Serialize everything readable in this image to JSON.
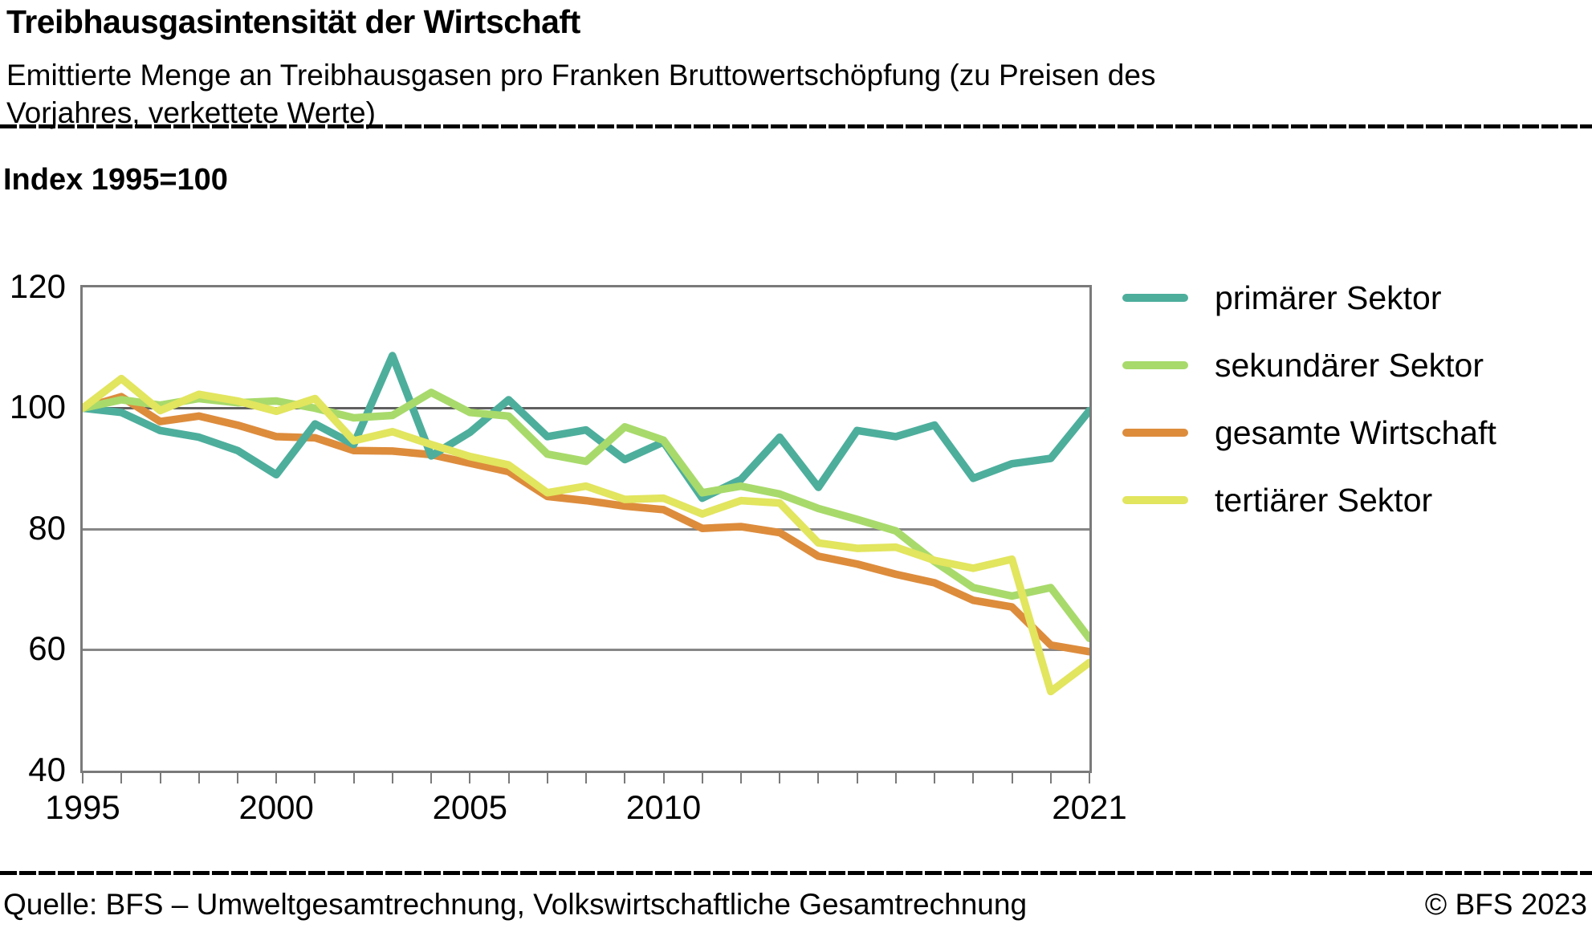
{
  "header": {
    "title": "Treibhausgasintensität der Wirtschaft",
    "subtitle_lines": [
      "Emittierte Menge an Treibhausgasen pro Franken Bruttowertschöpfung (zu Preisen des",
      "Vorjahres, verkettete Werte)"
    ]
  },
  "axis_note": "Index 1995=100",
  "chart_data": {
    "type": "line",
    "title": "Treibhausgasintensität der Wirtschaft",
    "index_note": "Index 1995=100",
    "x": [
      1995,
      1996,
      1997,
      1998,
      1999,
      2000,
      2001,
      2002,
      2003,
      2004,
      2005,
      2006,
      2007,
      2008,
      2009,
      2010,
      2011,
      2012,
      2013,
      2014,
      2015,
      2016,
      2017,
      2018,
      2019,
      2020,
      2021
    ],
    "x_ticklabel_years": [
      1995,
      2000,
      2005,
      2010,
      2021
    ],
    "x_ticklabels": [
      "1995",
      "2000",
      "2005",
      "2010",
      "2021"
    ],
    "ylim": [
      40,
      120
    ],
    "yticks": [
      40,
      60,
      80,
      100,
      120
    ],
    "grid": "horizontal",
    "legend_position": "right",
    "series": [
      {
        "name": "primärer Sektor",
        "color": "#4DAE9C",
        "values": [
          100,
          99.3,
          96.3,
          95.2,
          93.0,
          89.0,
          97.4,
          94.0,
          108.7,
          92.1,
          96.0,
          101.4,
          95.3,
          96.4,
          91.5,
          94.4,
          85.1,
          88.2,
          95.2,
          86.9,
          96.3,
          95.3,
          97.2,
          88.4,
          90.8,
          91.7,
          99.6
        ]
      },
      {
        "name": "sekundärer Sektor",
        "color": "#A8DA6B",
        "values": [
          100,
          101.4,
          100.5,
          101.6,
          100.9,
          101.2,
          100.0,
          98.4,
          98.8,
          102.6,
          99.3,
          98.7,
          92.4,
          91.2,
          96.9,
          94.7,
          86.0,
          87.1,
          85.8,
          83.4,
          81.6,
          79.7,
          74.6,
          70.3,
          68.9,
          70.3,
          61.9
        ]
      },
      {
        "name": "gesamte Wirtschaft",
        "color": "#DD8C3C",
        "values": [
          100,
          101.9,
          97.8,
          98.7,
          97.2,
          95.3,
          95.1,
          93.0,
          92.9,
          92.3,
          90.9,
          89.5,
          85.4,
          84.7,
          83.8,
          83.2,
          80.1,
          80.4,
          79.4,
          75.5,
          74.2,
          72.5,
          71.1,
          68.2,
          67.1,
          60.8,
          59.7
        ]
      },
      {
        "name": "tertiärer Sektor",
        "color": "#E2E55E",
        "values": [
          100,
          104.9,
          99.6,
          102.3,
          101.2,
          99.5,
          101.6,
          94.6,
          96.1,
          94.0,
          92.0,
          90.6,
          86.0,
          87.1,
          84.9,
          85.1,
          82.5,
          84.7,
          84.3,
          77.7,
          76.8,
          77.0,
          74.8,
          73.5,
          75.0,
          53.1,
          57.9
        ]
      }
    ],
    "draw_order": [
      "gesamte Wirtschaft",
      "primärer Sektor",
      "sekundärer Sektor",
      "tertiärer Sektor"
    ],
    "gridline_color_main": "#606060",
    "gridline_color": "#878787"
  },
  "footer": {
    "source": "Quelle: BFS – Umweltgesamtrechnung, Volkswirtschaftliche Gesamtrechnung",
    "copyright": "© BFS 2023"
  }
}
